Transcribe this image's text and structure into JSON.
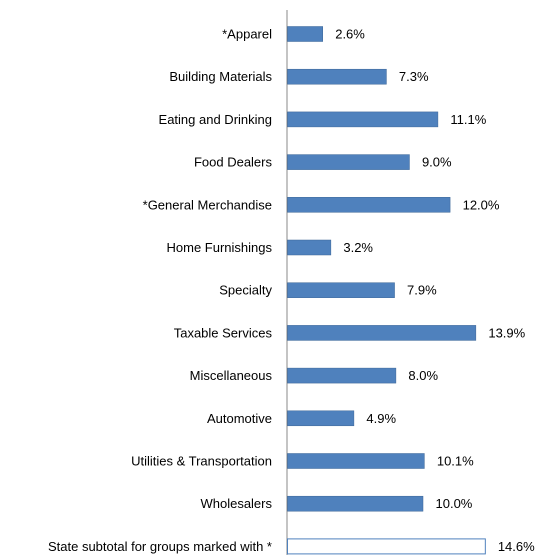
{
  "chart_data": {
    "type": "bar",
    "orientation": "horizontal",
    "categories": [
      "*Apparel",
      "Building Materials",
      "Eating and Drinking",
      "Food Dealers",
      "*General Merchandise",
      "Home Furnishings",
      "Specialty",
      "Taxable Services",
      "Miscellaneous",
      "Automotive",
      "Utilities & Transportation",
      "Wholesalers",
      "State subtotal for groups marked with *"
    ],
    "values": [
      2.6,
      7.3,
      11.1,
      9.0,
      12.0,
      3.2,
      7.9,
      13.9,
      8.0,
      4.9,
      10.1,
      10.0,
      14.6
    ],
    "value_labels": [
      "2.6%",
      "7.3%",
      "11.1%",
      "9.0%",
      "12.0%",
      "3.2%",
      "7.9%",
      "13.9%",
      "8.0%",
      "4.9%",
      "10.1%",
      "10.0%",
      "14.6%"
    ],
    "outlined": [
      false,
      false,
      false,
      false,
      false,
      false,
      false,
      false,
      false,
      false,
      false,
      false,
      true
    ],
    "xlim": [
      0,
      16
    ],
    "grid": false,
    "legend": "none",
    "title": "",
    "xlabel": "",
    "ylabel": "",
    "colors": {
      "bar_fill": "#4F81BD",
      "bar_stroke": "#3A6496",
      "outline_fill": "#ffffff",
      "outline_stroke": "#4F81BD",
      "axis": "#888888"
    }
  }
}
